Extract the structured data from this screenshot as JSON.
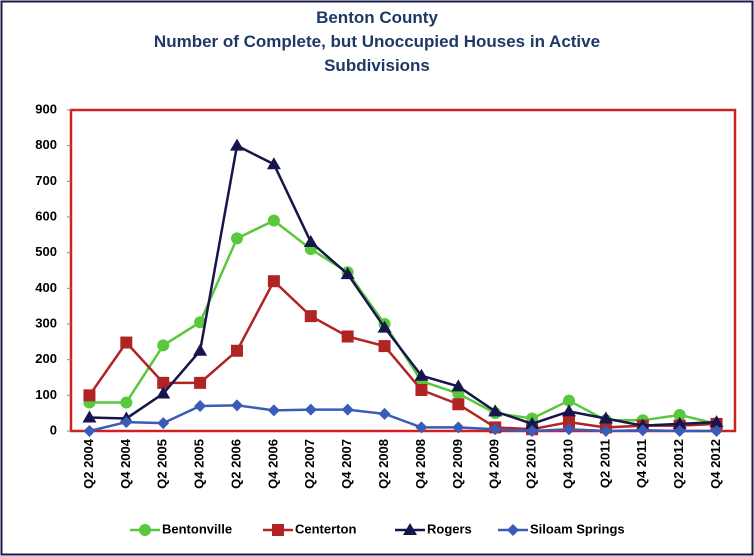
{
  "chart_data": {
    "type": "line",
    "title": "Benton County",
    "subtitle": "Number of Complete, but Unoccupied Houses in Active Subdivisions",
    "categories": [
      "Q2 2004",
      "Q4 2004",
      "Q2 2005",
      "Q4 2005",
      "Q2 2006",
      "Q4 2006",
      "Q2 2007",
      "Q4 2007",
      "Q2 2008",
      "Q4 2008",
      "Q2 2009",
      "Q4 2009",
      "Q2 2010",
      "Q4 2010",
      "Q2 2011",
      "Q4 2011",
      "Q2 2012",
      "Q4 2012"
    ],
    "series": [
      {
        "name": "Bentonville",
        "color": "#5ac83c",
        "marker": "circle",
        "values": [
          80,
          80,
          240,
          305,
          540,
          590,
          510,
          445,
          300,
          140,
          105,
          50,
          35,
          85,
          30,
          30,
          45,
          20
        ]
      },
      {
        "name": "Centerton",
        "color": "#b02424",
        "marker": "square",
        "values": [
          100,
          248,
          135,
          135,
          225,
          420,
          322,
          265,
          238,
          115,
          75,
          10,
          5,
          25,
          10,
          15,
          15,
          20
        ]
      },
      {
        "name": "Rogers",
        "color": "#16164c",
        "marker": "triangle",
        "values": [
          38,
          35,
          105,
          225,
          800,
          748,
          530,
          440,
          290,
          155,
          125,
          55,
          20,
          55,
          35,
          15,
          20,
          25
        ]
      },
      {
        "name": "Siloam Springs",
        "color": "#3a5cb8",
        "marker": "diamond",
        "values": [
          0,
          25,
          22,
          70,
          72,
          58,
          60,
          60,
          48,
          10,
          10,
          5,
          0,
          5,
          0,
          2,
          0,
          0
        ]
      }
    ],
    "ylim": [
      0,
      900
    ],
    "yticks": [
      0,
      100,
      200,
      300,
      400,
      500,
      600,
      700,
      800,
      900
    ],
    "grid": false,
    "legend": "bottom"
  }
}
